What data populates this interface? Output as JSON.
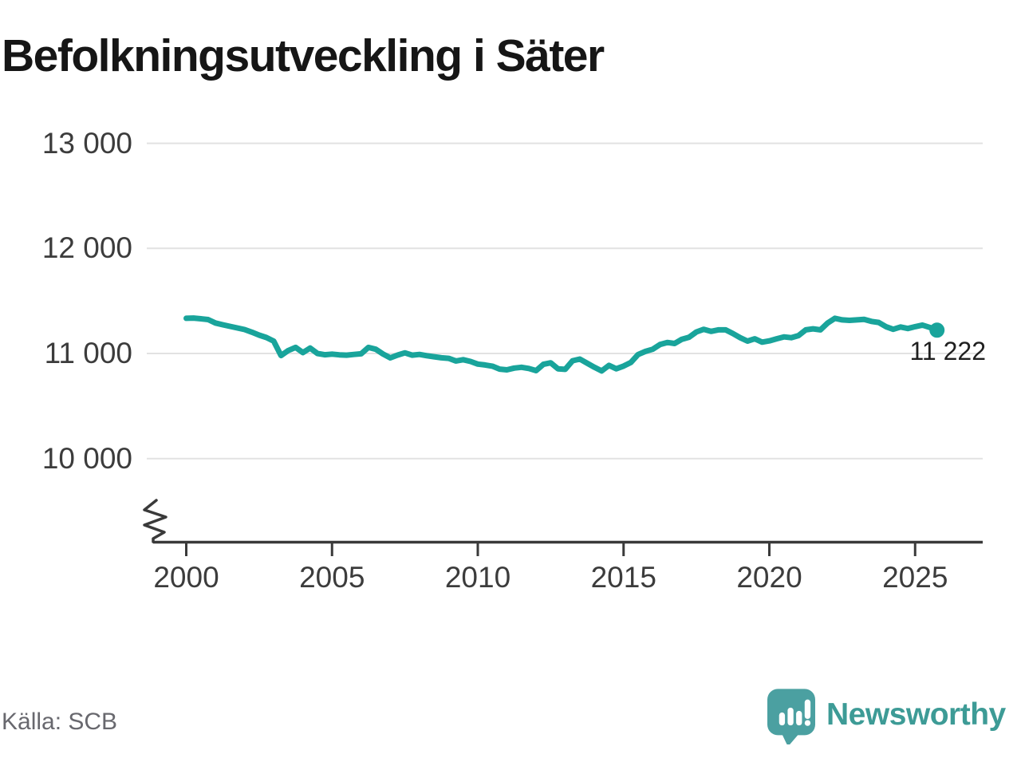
{
  "header": {
    "title": "Befolkningsutveckling i Säter"
  },
  "footer": {
    "source": "Källa: SCB",
    "brand": "Newsworthy"
  },
  "colors": {
    "line": "#19a49b",
    "dot": "#19a49b",
    "grid": "#e2e2e2",
    "axis": "#3a3a3a",
    "tick_text": "#3c3c3c",
    "logo_icon": "#4ba0a1",
    "logo_text": "#3d9b96"
  },
  "chart_data": {
    "type": "line",
    "title": "Befolkningsutveckling i Säter",
    "xlabel": "",
    "ylabel": "",
    "grid": "horizontal",
    "axis_break": true,
    "ylim": [
      10000,
      13000
    ],
    "xlim": [
      2000,
      2026
    ],
    "end_label": "11 222",
    "latest_value": 11222,
    "source": "SCB",
    "x_ticks": [
      {
        "value": 2000,
        "label": "2000"
      },
      {
        "value": 2005,
        "label": "2005"
      },
      {
        "value": 2010,
        "label": "2010"
      },
      {
        "value": 2015,
        "label": "2015"
      },
      {
        "value": 2020,
        "label": "2020"
      },
      {
        "value": 2025,
        "label": "2025"
      }
    ],
    "y_ticks": [
      {
        "value": 13000,
        "label": "13 000"
      },
      {
        "value": 12000,
        "label": "12 000"
      },
      {
        "value": 11000,
        "label": "11 000"
      },
      {
        "value": 10000,
        "label": "10 000"
      }
    ],
    "series": [
      {
        "name": "Befolkning i Säter (kvartalsvis)",
        "x_start": 2000,
        "x_step": 0.25,
        "values": [
          11335,
          11337,
          11330,
          11323,
          11290,
          11273,
          11258,
          11243,
          11228,
          11203,
          11175,
          11152,
          11118,
          10980,
          11028,
          11058,
          11008,
          11052,
          11000,
          10988,
          10994,
          10987,
          10984,
          10991,
          10997,
          11058,
          11040,
          10995,
          10958,
          10985,
          11006,
          10984,
          10991,
          10979,
          10969,
          10959,
          10954,
          10929,
          10941,
          10924,
          10899,
          10891,
          10879,
          10851,
          10844,
          10861,
          10869,
          10857,
          10837,
          10897,
          10911,
          10854,
          10849,
          10931,
          10947,
          10907,
          10869,
          10834,
          10887,
          10854,
          10880,
          10915,
          10990,
          11020,
          11040,
          11085,
          11105,
          11095,
          11135,
          11155,
          11205,
          11230,
          11210,
          11225,
          11225,
          11190,
          11150,
          11118,
          11140,
          11108,
          11120,
          11140,
          11158,
          11150,
          11170,
          11225,
          11235,
          11225,
          11290,
          11335,
          11320,
          11315,
          11320,
          11325,
          11305,
          11295,
          11255,
          11230,
          11252,
          11238,
          11255,
          11270,
          11248,
          11222
        ]
      }
    ]
  }
}
